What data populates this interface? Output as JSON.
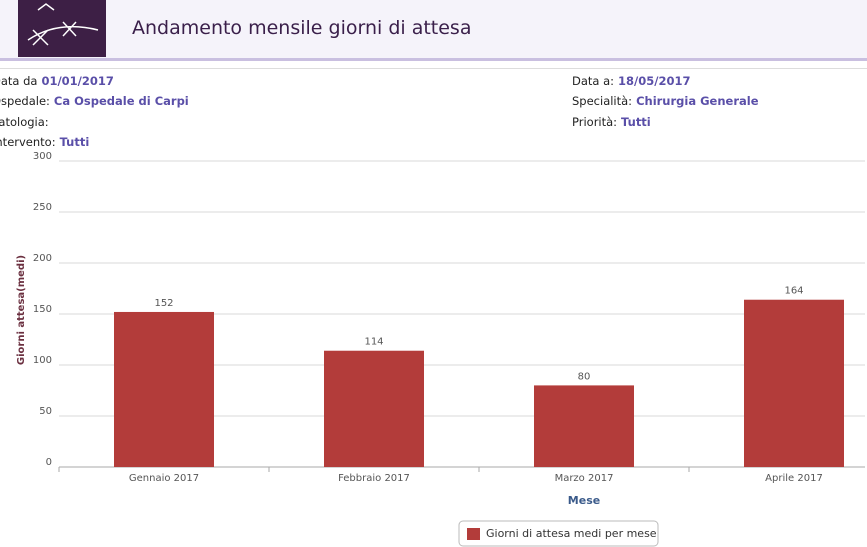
{
  "header": {
    "title": "Andamento mensile giorni di attesa"
  },
  "filters": {
    "left": [
      {
        "label": "Data da",
        "value": "01/01/2017"
      },
      {
        "label": "Ospedale:",
        "value": "Ca Ospedale di Carpi"
      },
      {
        "label": "Patologia:",
        "value": ""
      },
      {
        "label": "Intervento:",
        "value": "Tutti"
      }
    ],
    "right": [
      {
        "label": "Data a:",
        "value": "18/05/2017"
      },
      {
        "label": "Specialità:",
        "value": "Chirurgia Generale"
      },
      {
        "label": "Priorità:",
        "value": "Tutti"
      }
    ]
  },
  "chart_data": {
    "type": "bar",
    "categories": [
      "Gennaio 2017",
      "Febbraio 2017",
      "Marzo 2017",
      "Aprile 2017"
    ],
    "series": [
      {
        "name": "Giorni di attesa medi per mese",
        "color": "#b33c3a",
        "values": [
          152,
          114,
          80,
          164
        ]
      }
    ],
    "ylim": [
      0,
      300
    ],
    "yticks": [
      0,
      50,
      100,
      150,
      200,
      250,
      300
    ],
    "grid": true,
    "ylabel": "Giorni attesa(medi)",
    "xlabel": "Mese",
    "legend": "bottom"
  }
}
